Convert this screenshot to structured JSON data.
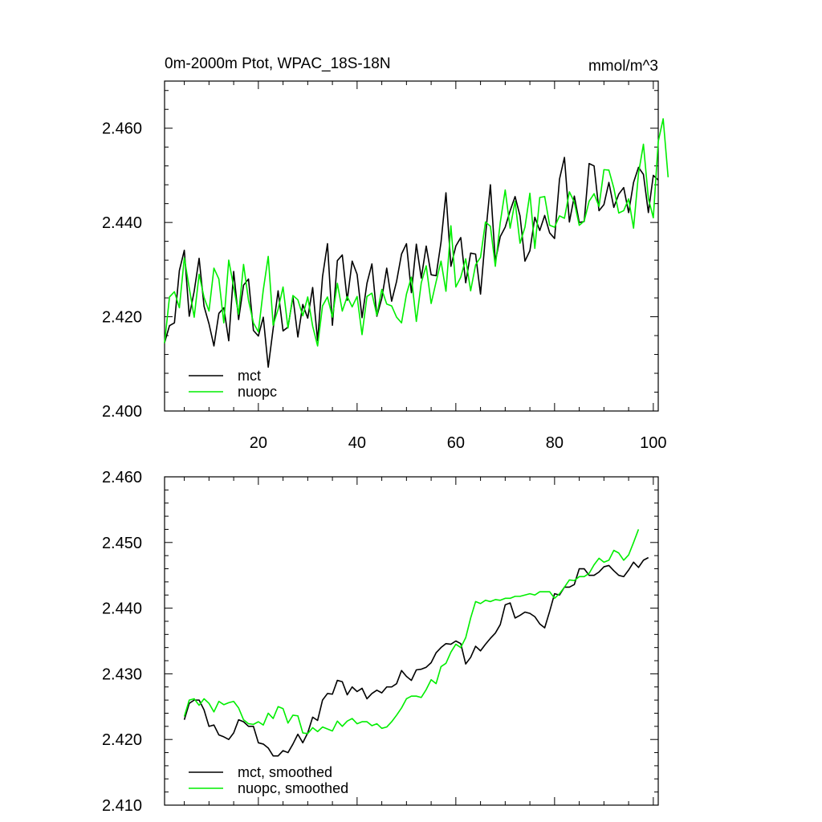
{
  "chart_data": [
    {
      "type": "line",
      "title": "0m-2000m Ptot, WPAC_18S-18N",
      "units": "mmol/m^3",
      "xlabel": "",
      "ylabel": "",
      "xlim": [
        1,
        101
      ],
      "ylim": [
        2.4,
        2.47
      ],
      "xticks": [
        20,
        40,
        60,
        80,
        100
      ],
      "xtick_labels": [
        "20",
        "40",
        "60",
        "80",
        "100"
      ],
      "yticks": [
        2.4,
        2.42,
        2.44,
        2.46
      ],
      "ytick_labels": [
        "2.400",
        "2.420",
        "2.440",
        "2.460"
      ],
      "grid": false,
      "legend_position": "bottom-left",
      "series": [
        {
          "name": "mct",
          "color": "#000000",
          "x_start": 1,
          "values": [
            2.4145,
            2.4181,
            2.4187,
            2.4298,
            2.4341,
            2.4201,
            2.4254,
            2.4324,
            2.4222,
            2.4185,
            2.4138,
            2.4207,
            2.4219,
            2.4149,
            2.4296,
            2.4194,
            2.4267,
            2.428,
            2.4171,
            2.4159,
            2.4199,
            2.4093,
            2.4175,
            2.4255,
            2.417,
            2.4178,
            2.4242,
            2.4157,
            2.4226,
            2.4197,
            2.4262,
            2.4149,
            2.4285,
            2.4355,
            2.4182,
            2.4319,
            2.4331,
            2.4235,
            2.4318,
            2.429,
            2.4198,
            2.4271,
            2.4312,
            2.4201,
            2.4239,
            2.4303,
            2.4233,
            2.4275,
            2.4333,
            2.4355,
            2.4251,
            2.4354,
            2.4282,
            2.435,
            2.4289,
            2.4287,
            2.4358,
            2.4463,
            2.4307,
            2.435,
            2.4368,
            2.4272,
            2.4335,
            2.4333,
            2.4248,
            2.4371,
            2.448,
            2.4317,
            2.437,
            2.439,
            2.4425,
            2.4455,
            2.4414,
            2.4318,
            2.434,
            2.4411,
            2.4383,
            2.4415,
            2.4378,
            2.4366,
            2.4492,
            2.4538,
            2.4401,
            2.4456,
            2.44,
            2.4402,
            2.4525,
            2.452,
            2.4425,
            2.4438,
            2.4485,
            2.4432,
            2.446,
            2.4474,
            2.4421,
            2.4485,
            2.4517,
            2.4502,
            2.4421,
            2.45,
            2.449
          ]
        },
        {
          "name": "nuopc",
          "color": "#00ee00",
          "x_start": 1,
          "values": [
            2.4144,
            2.4242,
            2.4253,
            2.4219,
            2.4325,
            2.4261,
            2.4199,
            2.429,
            2.4241,
            2.4212,
            2.4303,
            2.428,
            2.4187,
            2.432,
            2.4263,
            2.4205,
            2.4311,
            2.4235,
            2.4187,
            2.4168,
            2.4257,
            2.4328,
            2.4182,
            2.4216,
            2.4263,
            2.4176,
            2.4245,
            2.4236,
            2.4202,
            2.4242,
            2.418,
            2.4138,
            2.4223,
            2.4242,
            2.4199,
            2.4271,
            2.4212,
            2.4243,
            2.4221,
            2.4243,
            2.4162,
            2.4243,
            2.425,
            2.4203,
            2.4258,
            2.4227,
            2.4223,
            2.4199,
            2.4187,
            2.4248,
            2.4284,
            2.419,
            2.4272,
            2.4308,
            2.4228,
            2.4274,
            2.4318,
            2.4254,
            2.4393,
            2.4263,
            2.4284,
            2.4323,
            2.4255,
            2.431,
            2.4326,
            2.4401,
            2.4392,
            2.4307,
            2.44,
            2.4469,
            2.4388,
            2.4445,
            2.4356,
            2.439,
            2.4462,
            2.4345,
            2.4453,
            2.4455,
            2.4394,
            2.439,
            2.4414,
            2.4409,
            2.4465,
            2.4443,
            2.4394,
            2.4403,
            2.4445,
            2.4461,
            2.4434,
            2.4512,
            2.4511,
            2.4473,
            2.442,
            2.4425,
            2.445,
            2.4388,
            2.4504,
            2.4566,
            2.4451,
            2.441,
            2.4572,
            2.462,
            2.4496
          ]
        }
      ],
      "legend": [
        "mct",
        "nuopc"
      ]
    },
    {
      "type": "line",
      "title": "",
      "xlabel": "",
      "ylabel": "",
      "xlim": [
        1,
        101
      ],
      "ylim": [
        2.41,
        2.46
      ],
      "xticks": [
        20,
        40,
        60,
        80,
        100
      ],
      "yticks": [
        2.41,
        2.42,
        2.43,
        2.44,
        2.45,
        2.46
      ],
      "ytick_labels": [
        "2.410",
        "2.420",
        "2.430",
        "2.440",
        "2.450",
        "2.460"
      ],
      "grid": false,
      "legend_position": "bottom-left",
      "series": [
        {
          "name": "mct, smoothed",
          "color": "#000000",
          "x_start": 5,
          "values": [
            2.423,
            2.4255,
            2.426,
            2.426,
            2.4245,
            2.422,
            2.4222,
            2.4207,
            2.4204,
            2.42,
            2.421,
            2.423,
            2.4227,
            2.422,
            2.422,
            2.4195,
            2.4193,
            2.4187,
            2.4175,
            2.4175,
            2.4183,
            2.418,
            2.4193,
            2.4208,
            2.4195,
            2.421,
            2.4234,
            2.4229,
            2.426,
            2.427,
            2.4269,
            2.429,
            2.4288,
            2.4268,
            2.428,
            2.4273,
            2.4278,
            2.4262,
            2.427,
            2.4275,
            2.4271,
            2.428,
            2.428,
            2.4285,
            2.4305,
            2.4296,
            2.429,
            2.4306,
            2.4307,
            2.431,
            2.4317,
            2.4332,
            2.434,
            2.4346,
            2.4345,
            2.435,
            2.4346,
            2.4315,
            2.4325,
            2.4342,
            2.4335,
            2.4345,
            2.4354,
            2.4362,
            2.4375,
            2.4405,
            2.4408,
            2.4385,
            2.4389,
            2.4394,
            2.4392,
            2.4387,
            2.4376,
            2.437,
            2.4395,
            2.4422,
            2.442,
            2.4432,
            2.4432,
            2.4436,
            2.446,
            2.446,
            2.445,
            2.445,
            2.4455,
            2.4463,
            2.4465,
            2.4457,
            2.445,
            2.4448,
            2.4458,
            2.447,
            2.4462,
            2.4473,
            2.4477
          ]
        },
        {
          "name": "nuopc, smoothed",
          "color": "#00ee00",
          "x_start": 5,
          "values": [
            2.4235,
            2.426,
            2.4262,
            2.4252,
            2.4262,
            2.4255,
            2.4242,
            2.4258,
            2.4253,
            2.4256,
            2.4258,
            2.4248,
            2.423,
            2.4224,
            2.4223,
            2.4227,
            2.4222,
            2.424,
            2.4232,
            2.425,
            2.4247,
            2.4225,
            2.4237,
            2.4236,
            2.421,
            2.4209,
            2.4218,
            2.4212,
            2.4219,
            2.4216,
            2.4213,
            2.4228,
            2.422,
            2.4228,
            2.4232,
            2.4224,
            2.4227,
            2.4227,
            2.4221,
            2.4224,
            2.4217,
            2.4219,
            2.4227,
            2.4237,
            2.4248,
            2.4262,
            2.4266,
            2.4266,
            2.4264,
            2.4276,
            2.4291,
            2.4285,
            2.4311,
            2.4316,
            2.4333,
            2.4345,
            2.434,
            2.4355,
            2.4385,
            2.441,
            2.4407,
            2.4412,
            2.441,
            2.4413,
            2.4412,
            2.4415,
            2.4415,
            2.4418,
            2.4418,
            2.442,
            2.4422,
            2.442,
            2.4425,
            2.4425,
            2.4425,
            2.4415,
            2.4422,
            2.4432,
            2.4443,
            2.4442,
            2.4448,
            2.4448,
            2.4453,
            2.4466,
            2.4476,
            2.447,
            2.4473,
            2.4488,
            2.4484,
            2.4473,
            2.4481,
            2.45,
            2.452
          ]
        }
      ],
      "legend": [
        "mct, smoothed",
        "nuopc, smoothed"
      ]
    }
  ]
}
